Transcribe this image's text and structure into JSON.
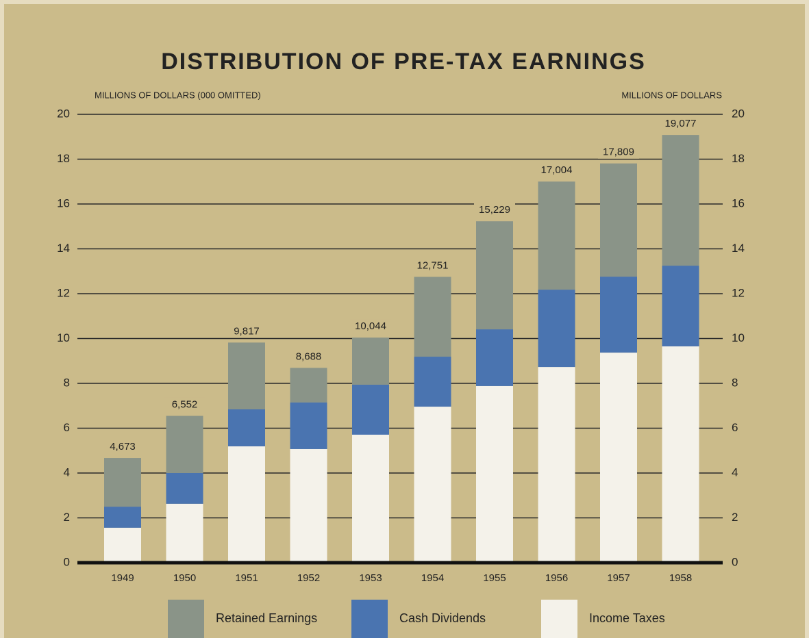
{
  "chart_data": {
    "type": "stacked_bar",
    "title": "DISTRIBUTION OF PRE-TAX EARNINGS",
    "y_axis_label": "MILLIONS OF DOLLARS (000 OMITTED)",
    "y2_axis_label": "MILLIONS OF DOLLARS",
    "categories": [
      "1949",
      "1950",
      "1951",
      "1952",
      "1953",
      "1954",
      "1955",
      "1956",
      "1957",
      "1958"
    ],
    "series": [
      {
        "name": "Retained Earnings",
        "color": "#8a9488",
        "values": [
          2.17,
          2.55,
          2.98,
          1.54,
          2.1,
          3.56,
          4.82,
          4.82,
          5.05,
          5.83
        ]
      },
      {
        "name": "Cash Dividends",
        "color": "#4a74b0",
        "values": [
          0.94,
          1.37,
          1.65,
          2.08,
          2.23,
          2.23,
          2.53,
          3.45,
          3.39,
          3.6
        ]
      },
      {
        "name": "Income Taxes",
        "color": "#f4f2ea",
        "values": [
          1.56,
          2.63,
          5.19,
          5.07,
          5.71,
          6.96,
          7.88,
          8.73,
          9.37,
          9.65
        ]
      }
    ],
    "totals": {
      "values": [
        4.673,
        6.552,
        9.817,
        8.688,
        10.044,
        12.751,
        15.229,
        17.004,
        17.809,
        19.077
      ],
      "value_labels": [
        "4,673",
        "6,552",
        "9,817",
        "8,688",
        "10,044",
        "12,751",
        "15,229",
        "17,004",
        "17,809",
        "19,077"
      ]
    },
    "ylim": [
      0,
      20
    ],
    "yticks": [
      0,
      2,
      4,
      6,
      8,
      10,
      12,
      14,
      16,
      18,
      20
    ],
    "y2lim": [
      0,
      20
    ],
    "y2ticks": [
      0,
      2,
      4,
      6,
      8,
      10,
      12,
      14,
      16,
      18,
      20
    ],
    "grid": true
  }
}
